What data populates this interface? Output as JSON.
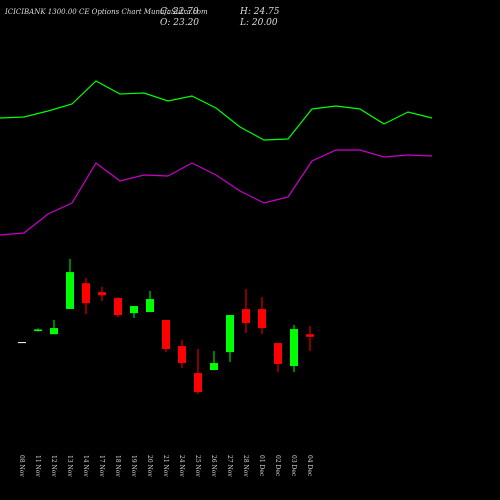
{
  "chart_data": {
    "type": "candlestick",
    "title": "ICICIBANK 1300.00 CE Options Chart MunafaSutra.com",
    "header": {
      "close": "C: 22.70",
      "high": "H: 24.75",
      "open": "O: 23.20",
      "low": "L: 20.00"
    },
    "categories": [
      "08 Nov",
      "11 Nov",
      "12 Nov",
      "13 Nov",
      "14 Nov",
      "17 Nov",
      "18 Nov",
      "19 Nov",
      "20 Nov",
      "21 Nov",
      "24 Nov",
      "25 Nov",
      "26 Nov",
      "27 Nov",
      "28 Nov",
      "01 Dec",
      "02 Dec",
      "03 Dec",
      "04 Dec"
    ],
    "open": [
      21.7,
      23.8,
      23.2,
      28.0,
      32.9,
      31.2,
      30.07,
      27.2,
      27.41,
      25.9,
      20.95,
      15.82,
      16.39,
      19.8,
      27.98,
      27.98,
      21.52,
      17.15,
      23.2
    ],
    "high": [
      21.7,
      24.3,
      25.9,
      37.5,
      33.9,
      32.2,
      30.26,
      28.55,
      31.4,
      25.9,
      22.09,
      20.38,
      20.0,
      26.84,
      31.78,
      30.26,
      21.52,
      24.94,
      24.75
    ],
    "low": [
      21.7,
      23.7,
      23.2,
      28.0,
      27.0,
      29.5,
      26.46,
      26.27,
      27.4,
      19.8,
      16.77,
      11.83,
      16.39,
      17.91,
      23.42,
      23.23,
      16.0,
      16.0,
      20.0
    ],
    "close": [
      21.7,
      24.1,
      24.37,
      35.0,
      29.1,
      30.6,
      26.84,
      28.55,
      29.88,
      20.38,
      17.72,
      12.2,
      17.72,
      26.84,
      25.32,
      24.37,
      17.53,
      24.18,
      22.7
    ],
    "up_color": "#00ff00",
    "down_color": "#ff0000",
    "flat_color": "#ffffff",
    "lines": [
      {
        "color": "#00ff00",
        "values": [
          64.28,
          64.47,
          65.61,
          66.94,
          71.31,
          68.84,
          69.03,
          67.51,
          68.46,
          66.18,
          62.57,
          60.1,
          60.29,
          65.99,
          66.56,
          65.99,
          63.14,
          65.42,
          64.28
        ]
      },
      {
        "color": "#cc00cc",
        "values": [
          42.05,
          42.43,
          46.04,
          48.13,
          55.73,
          52.31,
          53.45,
          53.26,
          55.73,
          53.45,
          50.41,
          48.13,
          49.27,
          56.11,
          58.2,
          58.2,
          56.87,
          57.25,
          57.06
        ]
      }
    ],
    "ylim": [
      -8.3,
      86.7
    ]
  }
}
